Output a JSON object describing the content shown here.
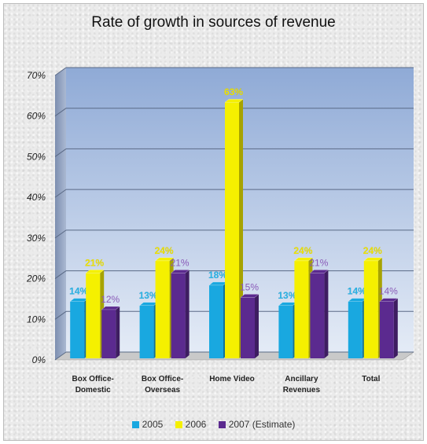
{
  "chart_data": {
    "type": "bar",
    "title": "Rate of growth in sources of revenue",
    "categories": [
      [
        "Box Office-",
        "Domestic"
      ],
      [
        "Box Office-",
        "Overseas"
      ],
      [
        "Home Video"
      ],
      [
        "Ancillary",
        "Revenues"
      ],
      [
        "Total"
      ]
    ],
    "series": [
      {
        "name": "2005",
        "color": "#19a8e0",
        "label_color": "#29b6ea",
        "values": [
          14,
          13,
          18,
          13,
          14
        ],
        "labels": [
          "14%",
          "13%",
          "18%",
          "13%",
          "14%"
        ]
      },
      {
        "name": "2006",
        "color": "#f5f000",
        "label_color": "#f2e600",
        "values": [
          21,
          24,
          63,
          24,
          24
        ],
        "labels": [
          "21%",
          "24%",
          "63%",
          "24%",
          "24%"
        ]
      },
      {
        "name": "2007 (Estimate)",
        "color": "#5b2a8f",
        "label_color": "#8a5bb8",
        "values": [
          12,
          21,
          15,
          21,
          14
        ],
        "labels": [
          "12%",
          "21%",
          "15%",
          "21%",
          "14%"
        ]
      }
    ],
    "ylim": [
      0,
      70
    ],
    "yticks": [
      "0%",
      "10%",
      "20%",
      "30%",
      "40%",
      "50%",
      "60%",
      "70%"
    ],
    "grid": true,
    "legend_position": "bottom"
  }
}
